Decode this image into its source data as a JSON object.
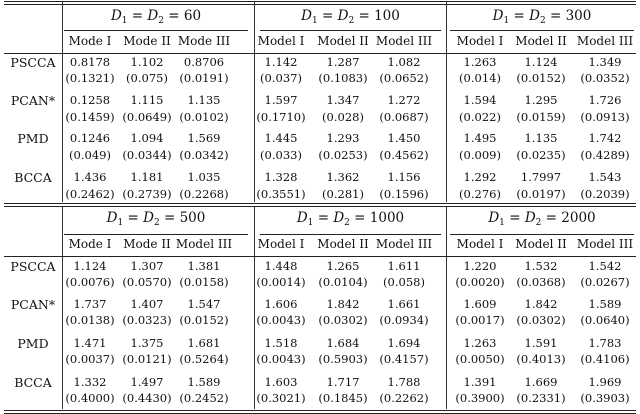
{
  "panels": [
    {
      "groups": [
        {
          "prefix": "D",
          "eq": "=",
          "suffix": "= 60"
        },
        {
          "prefix": "D",
          "eq": "=",
          "suffix": "= 100"
        },
        {
          "prefix": "D",
          "eq": "=",
          "suffix": "= 300"
        }
      ],
      "subheaders": [
        "Mode I",
        "Mode II",
        "Mode III",
        "Model I",
        "Model II",
        "Model III",
        "Model I",
        "Model II",
        "Model III"
      ],
      "rows": [
        {
          "label": "PSCCA",
          "means": [
            "0.8178",
            "1.102",
            "0.8706",
            "1.142",
            "1.287",
            "1.082",
            "1.263",
            "1.124",
            "1.349"
          ],
          "sds": [
            "(0.1321)",
            "(0.075)",
            "(0.0191)",
            "(0.037)",
            "(0.1083)",
            "(0.0652)",
            "(0.014)",
            "(0.0152)",
            "(0.0352)"
          ]
        },
        {
          "label": "PCAN*",
          "means": [
            "0.1258",
            "1.115",
            "1.135",
            "1.597",
            "1.347",
            "1.272",
            "1.594",
            "1.295",
            "1.726"
          ],
          "sds": [
            "(0.1459)",
            "(0.0649)",
            "(0.0102)",
            "(0.1710)",
            "(0.028)",
            "(0.0687)",
            "(0.022)",
            "(0.0159)",
            "(0.0913)"
          ]
        },
        {
          "label": "PMD",
          "means": [
            "0.1246",
            "1.094",
            "1.569",
            "1.445",
            "1.293",
            "1.450",
            "1.495",
            "1.135",
            "1.742"
          ],
          "sds": [
            "(0.049)",
            "(0.0344)",
            "(0.0342)",
            "(0.033)",
            "(0.0253)",
            "(0.4562)",
            "(0.009)",
            "(0.0235)",
            "(0.4289)"
          ]
        },
        {
          "label": "BCCA",
          "means": [
            "1.436",
            "1.181",
            "1.035",
            "1.328",
            "1.362",
            "1.156",
            "1.292",
            "1.7997",
            "1.543"
          ],
          "sds": [
            "(0.2462)",
            "(0.2739)",
            "(0.2268)",
            "(0.3551)",
            "(0.281)",
            "(0.1596)",
            "(0.276)",
            "(0.0197)",
            "(0.2039)"
          ]
        }
      ]
    },
    {
      "groups": [
        {
          "prefix": "D",
          "eq": "=",
          "suffix": "= 500"
        },
        {
          "prefix": "D",
          "eq": "=",
          "suffix": "= 1000"
        },
        {
          "prefix": "D",
          "eq": "=",
          "suffix": "= 2000"
        }
      ],
      "subheaders": [
        "Mode I",
        "Mode II",
        "Model III",
        "Model I",
        "Model II",
        "Model III",
        "Model I",
        "Model II",
        "Model III"
      ],
      "rows": [
        {
          "label": "PSCCA",
          "means": [
            "1.124",
            "1.307",
            "1.381",
            "1.448",
            "1.265",
            "1.611",
            "1.220",
            "1.532",
            "1.542"
          ],
          "sds": [
            "(0.0076)",
            "(0.0570)",
            "(0.0158)",
            "(0.0014)",
            "(0.0104)",
            "(0.058)",
            "(0.0020)",
            "(0.0368)",
            "(0.0267)"
          ]
        },
        {
          "label": "PCAN*",
          "means": [
            "1.737",
            "1.407",
            "1.547",
            "1.606",
            "1.842",
            "1.661",
            "1.609",
            "1.842",
            "1.589"
          ],
          "sds": [
            "(0.0138)",
            "(0.0323)",
            "(0.0152)",
            "(0.0043)",
            "(0.0302)",
            "(0.0934)",
            "(0.0017)",
            "(0.0302)",
            "(0.0640)"
          ]
        },
        {
          "label": "PMD",
          "means": [
            "1.471",
            "1.375",
            "1.681",
            "1.518",
            "1.684",
            "1.694",
            "1.263",
            "1.591",
            "1.783"
          ],
          "sds": [
            "(0.0037)",
            "(0.0121)",
            "(0.5264)",
            "(0.0043)",
            "(0.5903)",
            "(0.4157)",
            "(0.0050)",
            "(0.4013)",
            "(0.4106)"
          ]
        },
        {
          "label": "BCCA",
          "means": [
            "1.332",
            "1.497",
            "1.589",
            "1.603",
            "1.717",
            "1.788",
            "1.391",
            "1.669",
            "1.969"
          ],
          "sds": [
            "(0.4000)",
            "(0.4430)",
            "(0.2452)",
            "(0.3021)",
            "(0.1845)",
            "(0.2262)",
            "(0.3900)",
            "(0.2331)",
            "(0.3903)"
          ]
        }
      ]
    }
  ]
}
